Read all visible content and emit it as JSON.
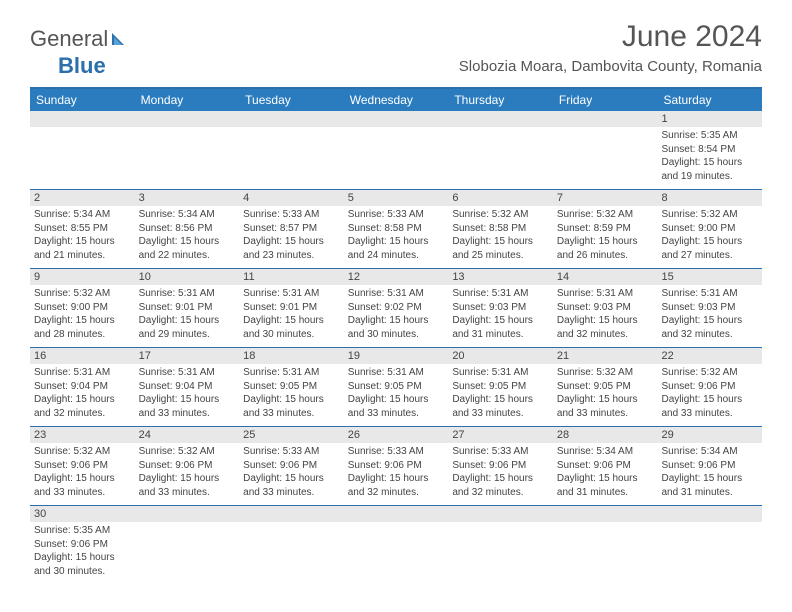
{
  "logo": {
    "text1": "General",
    "text2": "Blue"
  },
  "title": "June 2024",
  "location": "Slobozia Moara, Dambovita County, Romania",
  "colors": {
    "header_bg": "#2b7bbf",
    "border": "#2b6fab",
    "daynum_bg": "#e8e8e8",
    "text": "#444444",
    "title_text": "#555555"
  },
  "day_headers": [
    "Sunday",
    "Monday",
    "Tuesday",
    "Wednesday",
    "Thursday",
    "Friday",
    "Saturday"
  ],
  "weeks": [
    {
      "nums": [
        "",
        "",
        "",
        "",
        "",
        "",
        "1"
      ],
      "cells": [
        null,
        null,
        null,
        null,
        null,
        null,
        {
          "sunrise": "Sunrise: 5:35 AM",
          "sunset": "Sunset: 8:54 PM",
          "daylight1": "Daylight: 15 hours",
          "daylight2": "and 19 minutes."
        }
      ]
    },
    {
      "nums": [
        "2",
        "3",
        "4",
        "5",
        "6",
        "7",
        "8"
      ],
      "cells": [
        {
          "sunrise": "Sunrise: 5:34 AM",
          "sunset": "Sunset: 8:55 PM",
          "daylight1": "Daylight: 15 hours",
          "daylight2": "and 21 minutes."
        },
        {
          "sunrise": "Sunrise: 5:34 AM",
          "sunset": "Sunset: 8:56 PM",
          "daylight1": "Daylight: 15 hours",
          "daylight2": "and 22 minutes."
        },
        {
          "sunrise": "Sunrise: 5:33 AM",
          "sunset": "Sunset: 8:57 PM",
          "daylight1": "Daylight: 15 hours",
          "daylight2": "and 23 minutes."
        },
        {
          "sunrise": "Sunrise: 5:33 AM",
          "sunset": "Sunset: 8:58 PM",
          "daylight1": "Daylight: 15 hours",
          "daylight2": "and 24 minutes."
        },
        {
          "sunrise": "Sunrise: 5:32 AM",
          "sunset": "Sunset: 8:58 PM",
          "daylight1": "Daylight: 15 hours",
          "daylight2": "and 25 minutes."
        },
        {
          "sunrise": "Sunrise: 5:32 AM",
          "sunset": "Sunset: 8:59 PM",
          "daylight1": "Daylight: 15 hours",
          "daylight2": "and 26 minutes."
        },
        {
          "sunrise": "Sunrise: 5:32 AM",
          "sunset": "Sunset: 9:00 PM",
          "daylight1": "Daylight: 15 hours",
          "daylight2": "and 27 minutes."
        }
      ]
    },
    {
      "nums": [
        "9",
        "10",
        "11",
        "12",
        "13",
        "14",
        "15"
      ],
      "cells": [
        {
          "sunrise": "Sunrise: 5:32 AM",
          "sunset": "Sunset: 9:00 PM",
          "daylight1": "Daylight: 15 hours",
          "daylight2": "and 28 minutes."
        },
        {
          "sunrise": "Sunrise: 5:31 AM",
          "sunset": "Sunset: 9:01 PM",
          "daylight1": "Daylight: 15 hours",
          "daylight2": "and 29 minutes."
        },
        {
          "sunrise": "Sunrise: 5:31 AM",
          "sunset": "Sunset: 9:01 PM",
          "daylight1": "Daylight: 15 hours",
          "daylight2": "and 30 minutes."
        },
        {
          "sunrise": "Sunrise: 5:31 AM",
          "sunset": "Sunset: 9:02 PM",
          "daylight1": "Daylight: 15 hours",
          "daylight2": "and 30 minutes."
        },
        {
          "sunrise": "Sunrise: 5:31 AM",
          "sunset": "Sunset: 9:03 PM",
          "daylight1": "Daylight: 15 hours",
          "daylight2": "and 31 minutes."
        },
        {
          "sunrise": "Sunrise: 5:31 AM",
          "sunset": "Sunset: 9:03 PM",
          "daylight1": "Daylight: 15 hours",
          "daylight2": "and 32 minutes."
        },
        {
          "sunrise": "Sunrise: 5:31 AM",
          "sunset": "Sunset: 9:03 PM",
          "daylight1": "Daylight: 15 hours",
          "daylight2": "and 32 minutes."
        }
      ]
    },
    {
      "nums": [
        "16",
        "17",
        "18",
        "19",
        "20",
        "21",
        "22"
      ],
      "cells": [
        {
          "sunrise": "Sunrise: 5:31 AM",
          "sunset": "Sunset: 9:04 PM",
          "daylight1": "Daylight: 15 hours",
          "daylight2": "and 32 minutes."
        },
        {
          "sunrise": "Sunrise: 5:31 AM",
          "sunset": "Sunset: 9:04 PM",
          "daylight1": "Daylight: 15 hours",
          "daylight2": "and 33 minutes."
        },
        {
          "sunrise": "Sunrise: 5:31 AM",
          "sunset": "Sunset: 9:05 PM",
          "daylight1": "Daylight: 15 hours",
          "daylight2": "and 33 minutes."
        },
        {
          "sunrise": "Sunrise: 5:31 AM",
          "sunset": "Sunset: 9:05 PM",
          "daylight1": "Daylight: 15 hours",
          "daylight2": "and 33 minutes."
        },
        {
          "sunrise": "Sunrise: 5:31 AM",
          "sunset": "Sunset: 9:05 PM",
          "daylight1": "Daylight: 15 hours",
          "daylight2": "and 33 minutes."
        },
        {
          "sunrise": "Sunrise: 5:32 AM",
          "sunset": "Sunset: 9:05 PM",
          "daylight1": "Daylight: 15 hours",
          "daylight2": "and 33 minutes."
        },
        {
          "sunrise": "Sunrise: 5:32 AM",
          "sunset": "Sunset: 9:06 PM",
          "daylight1": "Daylight: 15 hours",
          "daylight2": "and 33 minutes."
        }
      ]
    },
    {
      "nums": [
        "23",
        "24",
        "25",
        "26",
        "27",
        "28",
        "29"
      ],
      "cells": [
        {
          "sunrise": "Sunrise: 5:32 AM",
          "sunset": "Sunset: 9:06 PM",
          "daylight1": "Daylight: 15 hours",
          "daylight2": "and 33 minutes."
        },
        {
          "sunrise": "Sunrise: 5:32 AM",
          "sunset": "Sunset: 9:06 PM",
          "daylight1": "Daylight: 15 hours",
          "daylight2": "and 33 minutes."
        },
        {
          "sunrise": "Sunrise: 5:33 AM",
          "sunset": "Sunset: 9:06 PM",
          "daylight1": "Daylight: 15 hours",
          "daylight2": "and 33 minutes."
        },
        {
          "sunrise": "Sunrise: 5:33 AM",
          "sunset": "Sunset: 9:06 PM",
          "daylight1": "Daylight: 15 hours",
          "daylight2": "and 32 minutes."
        },
        {
          "sunrise": "Sunrise: 5:33 AM",
          "sunset": "Sunset: 9:06 PM",
          "daylight1": "Daylight: 15 hours",
          "daylight2": "and 32 minutes."
        },
        {
          "sunrise": "Sunrise: 5:34 AM",
          "sunset": "Sunset: 9:06 PM",
          "daylight1": "Daylight: 15 hours",
          "daylight2": "and 31 minutes."
        },
        {
          "sunrise": "Sunrise: 5:34 AM",
          "sunset": "Sunset: 9:06 PM",
          "daylight1": "Daylight: 15 hours",
          "daylight2": "and 31 minutes."
        }
      ]
    },
    {
      "nums": [
        "30",
        "",
        "",
        "",
        "",
        "",
        ""
      ],
      "cells": [
        {
          "sunrise": "Sunrise: 5:35 AM",
          "sunset": "Sunset: 9:06 PM",
          "daylight1": "Daylight: 15 hours",
          "daylight2": "and 30 minutes."
        },
        null,
        null,
        null,
        null,
        null,
        null
      ]
    }
  ]
}
